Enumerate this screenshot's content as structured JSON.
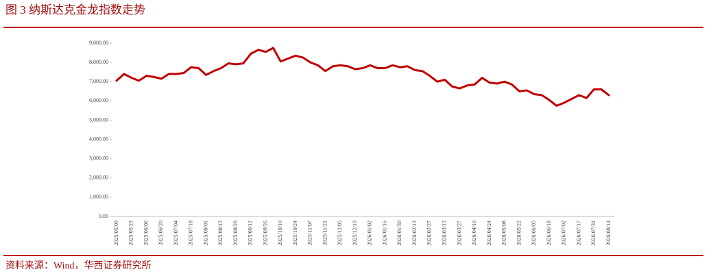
{
  "chart_data": {
    "type": "line",
    "title": "图 3  纳斯达克金龙指数走势",
    "source": "资料来源：Wind，华西证券研究所",
    "categories": [
      "2025/05/09",
      null,
      "2025/05/23",
      null,
      "2025/06/06",
      null,
      "2025/06/20",
      null,
      "2025/07/04",
      null,
      "2025/07/18",
      null,
      "2025/08/01",
      null,
      "2025/08/15",
      null,
      "2025/08/29",
      null,
      "2025/09/12",
      null,
      "2025/09/26",
      null,
      "2025/10/10",
      null,
      "2025/10/24",
      null,
      "2025/11/07",
      null,
      "2025/11/21",
      null,
      "2025/12/05",
      null,
      "2025/12/19",
      null,
      "2026/01/02",
      null,
      "2026/01/16",
      null,
      "2026/01/30",
      null,
      "2026/02/13",
      null,
      "2026/02/27",
      null,
      "2026/03/13",
      null,
      "2026/03/27",
      null,
      "2026/04/10",
      null,
      "2026/04/24",
      null,
      "2026/05/08",
      null,
      "2026/05/22",
      null,
      "2026/06/05",
      null,
      "2026/06/18",
      null,
      "2026/07/02",
      null,
      "2026/07/17",
      null,
      "2026/07/31",
      null,
      "2026/08/14"
    ],
    "series": [
      {
        "color": "#c00000",
        "values": [
          7050,
          7400,
          7200,
          7050,
          7300,
          7250,
          7150,
          7400,
          7400,
          7450,
          7750,
          7700,
          7350,
          7550,
          7700,
          7950,
          7900,
          7950,
          8450,
          8650,
          8550,
          8750,
          8050,
          8200,
          8350,
          8250,
          8000,
          7850,
          7550,
          7800,
          7850,
          7800,
          7650,
          7700,
          7850,
          7700,
          7700,
          7850,
          7750,
          7800,
          7600,
          7550,
          7300,
          7000,
          7100,
          6750,
          6650,
          6800,
          6850,
          7200,
          6950,
          6900,
          7000,
          6850,
          6500,
          6550,
          6350,
          6300,
          6050,
          5750,
          5900,
          6100,
          6300,
          6150,
          6600,
          6600,
          6300
        ]
      }
    ],
    "ylim": [
      0,
      9000
    ],
    "yticks": [
      {
        "value": 0,
        "label": "0.00"
      },
      {
        "value": 1000,
        "label": "1,000.00"
      },
      {
        "value": 2000,
        "label": "2,000.00"
      },
      {
        "value": 3000,
        "label": "3,000.00"
      },
      {
        "value": 4000,
        "label": "4,000.00"
      },
      {
        "value": 5000,
        "label": "5,000.00"
      },
      {
        "value": 6000,
        "label": "6,000.00"
      },
      {
        "value": 7000,
        "label": "7,000.00"
      },
      {
        "value": 8000,
        "label": "8,000.00"
      },
      {
        "value": 9000,
        "label": "9,000.00"
      }
    ],
    "grid": false
  }
}
